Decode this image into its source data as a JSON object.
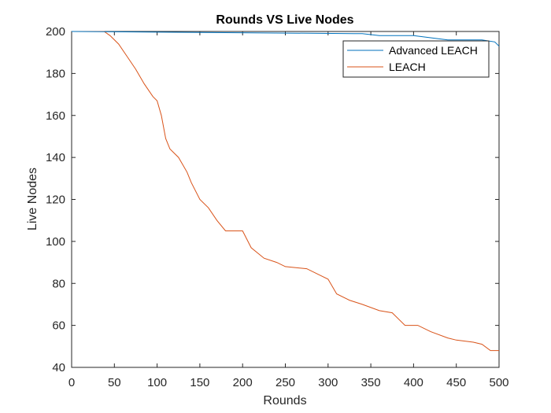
{
  "chart_data": {
    "type": "line",
    "title": "Rounds VS Live Nodes",
    "xlabel": "Rounds",
    "ylabel": "Live Nodes",
    "xlim": [
      0,
      500
    ],
    "ylim": [
      40,
      200
    ],
    "xticks": [
      0,
      50,
      100,
      150,
      200,
      250,
      300,
      350,
      400,
      450,
      500
    ],
    "yticks": [
      40,
      60,
      80,
      100,
      120,
      140,
      160,
      180,
      200
    ],
    "grid": false,
    "legend_position": "top-right",
    "series": [
      {
        "name": "Advanced LEACH",
        "color": "#0072BD",
        "x": [
          0,
          330,
          340,
          360,
          400,
          420,
          440,
          480,
          495,
          500
        ],
        "y": [
          200,
          199,
          199,
          198,
          198,
          197,
          196,
          196,
          195,
          193
        ]
      },
      {
        "name": "LEACH",
        "color": "#D95319",
        "x": [
          0,
          38,
          45,
          55,
          65,
          75,
          85,
          95,
          100,
          105,
          110,
          115,
          125,
          135,
          140,
          150,
          160,
          170,
          180,
          200,
          210,
          225,
          240,
          250,
          275,
          290,
          300,
          310,
          325,
          340,
          360,
          375,
          390,
          405,
          420,
          440,
          450,
          470,
          480,
          490,
          500
        ],
        "y": [
          200,
          200,
          198,
          194,
          188,
          182,
          175,
          169,
          167,
          160,
          149,
          144,
          140,
          133,
          128,
          120,
          116,
          110,
          105,
          105,
          97,
          92,
          90,
          88,
          87,
          84,
          82,
          75,
          72,
          70,
          67,
          66,
          60,
          60,
          57,
          54,
          53,
          52,
          51,
          48,
          48
        ]
      }
    ]
  }
}
